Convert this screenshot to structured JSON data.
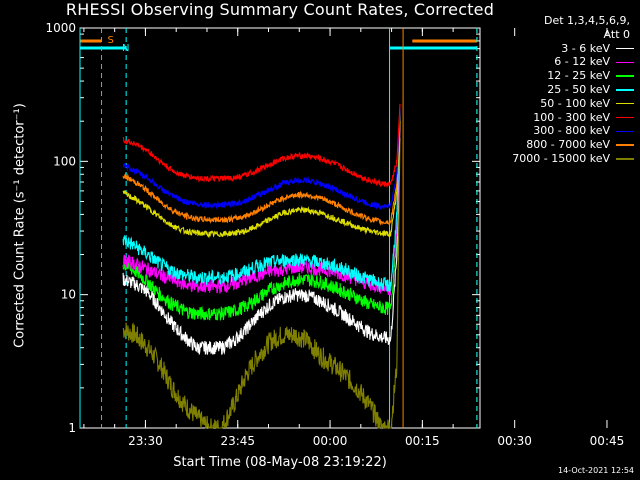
{
  "chart_data": {
    "type": "line",
    "title": "RHESSI Observing Summary Count Rates, Corrected",
    "xlabel": "Start Time (08-May-08 23:19:22)",
    "ylabel": "Corrected Count Rate (s⁻¹ detector⁻¹)",
    "yscale": "log",
    "ylim": [
      1,
      1000
    ],
    "xlim_minutes": [
      0,
      65
    ],
    "x_ticks": [
      "23:30",
      "23:45",
      "00:00",
      "00:15",
      "00:30",
      "00:45"
    ],
    "y_ticks": [
      "1",
      "10",
      "100",
      "1000"
    ],
    "legend_header": [
      "Det 1,3,4,5,6,9,",
      "Att 0"
    ],
    "series": [
      {
        "name": "3 - 6 keV",
        "color": "#ffffff",
        "x": [
          7,
          9,
          11,
          13,
          15,
          17,
          19,
          21,
          23,
          25,
          27,
          29,
          31,
          33,
          35,
          37,
          39,
          41,
          43,
          45,
          47,
          49,
          50.5,
          51.5,
          52
        ],
        "values": [
          13,
          12,
          10.5,
          8,
          6,
          4.8,
          4,
          4,
          4,
          4.5,
          5.5,
          7,
          8.5,
          9.5,
          10,
          9.8,
          9,
          8,
          7,
          6,
          5.2,
          4.8,
          4.6,
          20,
          200
        ]
      },
      {
        "name": "6 - 12 keV",
        "color": "#ff00ff",
        "x": [
          7,
          9,
          11,
          13,
          15,
          17,
          19,
          21,
          23,
          25,
          27,
          29,
          31,
          33,
          35,
          37,
          39,
          41,
          43,
          45,
          47,
          49,
          50.5,
          51.5,
          52
        ],
        "values": [
          18,
          17,
          15.5,
          14,
          13,
          12,
          11.5,
          11.5,
          11.5,
          12,
          13,
          14,
          15,
          15.5,
          16,
          16,
          15.5,
          15,
          14,
          13,
          12,
          11.5,
          11,
          30,
          220
        ]
      },
      {
        "name": "12 - 25 keV",
        "color": "#00ff00",
        "x": [
          7,
          9,
          11,
          13,
          15,
          17,
          19,
          21,
          23,
          25,
          27,
          29,
          31,
          33,
          35,
          37,
          39,
          41,
          43,
          45,
          47,
          49,
          50.5,
          51.5,
          52
        ],
        "values": [
          17,
          15,
          12.5,
          10,
          8.5,
          7.5,
          7.2,
          7.2,
          7.2,
          7.5,
          8.2,
          9.5,
          11,
          12,
          13,
          13,
          12.5,
          11.5,
          10.5,
          9.5,
          8.5,
          8,
          7.8,
          30,
          250
        ]
      },
      {
        "name": "25 - 50 keV",
        "color": "#00ffff",
        "x": [
          7,
          9,
          11,
          13,
          15,
          17,
          19,
          21,
          23,
          25,
          27,
          29,
          31,
          33,
          35,
          37,
          39,
          41,
          43,
          45,
          47,
          49,
          50.5,
          51.5,
          52
        ],
        "values": [
          26,
          23,
          20,
          17,
          15,
          14,
          13.5,
          13.5,
          13.5,
          14,
          15,
          16.5,
          17.5,
          18,
          18.5,
          18,
          17.5,
          16.5,
          15.5,
          14,
          13,
          12,
          11.5,
          40,
          230
        ]
      },
      {
        "name": "50 - 100 keV",
        "color": "#dddd00",
        "x": [
          7,
          9,
          11,
          13,
          15,
          17,
          19,
          21,
          23,
          25,
          27,
          29,
          31,
          33,
          35,
          37,
          39,
          41,
          43,
          45,
          47,
          49,
          50.5,
          51.5,
          52
        ],
        "values": [
          58,
          52,
          45,
          38,
          33,
          30,
          29,
          28.5,
          28.5,
          29,
          30,
          33,
          37,
          41,
          43,
          43,
          41,
          38,
          35,
          32,
          30,
          29,
          28.5,
          60,
          200
        ]
      },
      {
        "name": "100 - 300 keV",
        "color": "#ff0000",
        "x": [
          7,
          9,
          11,
          13,
          15,
          17,
          19,
          21,
          23,
          25,
          27,
          29,
          31,
          33,
          35,
          37,
          39,
          41,
          43,
          45,
          47,
          49,
          50.5,
          51.5,
          52
        ],
        "values": [
          145,
          135,
          120,
          100,
          85,
          78,
          75,
          74,
          74,
          75,
          79,
          86,
          96,
          105,
          110,
          110,
          105,
          98,
          88,
          79,
          72,
          68,
          67,
          100,
          270
        ]
      },
      {
        "name": "300 - 800 keV",
        "color": "#0000ff",
        "x": [
          7,
          9,
          11,
          13,
          15,
          17,
          19,
          21,
          23,
          25,
          27,
          29,
          31,
          33,
          35,
          37,
          39,
          41,
          43,
          45,
          47,
          49,
          50.5,
          51.5,
          52
        ],
        "values": [
          92,
          85,
          75,
          63,
          55,
          50,
          48,
          47,
          47,
          48,
          51,
          56,
          62,
          68,
          72,
          72,
          68,
          63,
          57,
          52,
          48,
          46,
          46,
          80,
          250
        ]
      },
      {
        "name": "800 - 7000 keV",
        "color": "#ff8000",
        "x": [
          7,
          9,
          11,
          13,
          15,
          17,
          19,
          21,
          23,
          25,
          27,
          29,
          31,
          33,
          35,
          37,
          39,
          41,
          43,
          45,
          47,
          49,
          50.5,
          51.5,
          52
        ],
        "values": [
          78,
          70,
          60,
          50,
          43,
          39,
          37,
          36.5,
          36.5,
          37,
          39,
          43,
          48,
          53,
          56,
          56,
          53,
          49,
          44,
          40,
          37,
          35,
          35,
          70,
          240
        ]
      },
      {
        "name": "7000 - 15000 keV",
        "color": "#808000",
        "x": [
          7,
          9,
          11,
          13,
          15,
          17,
          19,
          21,
          23,
          25,
          27,
          29,
          31,
          33,
          35,
          37,
          39,
          41,
          43,
          45,
          47,
          49,
          50.5,
          51.5,
          52
        ],
        "values": [
          5.5,
          5,
          4,
          3,
          2,
          1.5,
          1.2,
          1,
          1,
          1.5,
          2.5,
          3.5,
          4.5,
          5,
          5,
          4.5,
          3.5,
          3,
          2.5,
          2,
          1.5,
          1,
          1,
          3,
          150
        ]
      }
    ],
    "markers": [
      {
        "label": "S",
        "color": "#ff8000",
        "x": [
          3.5,
          52.5,
          64.5
        ]
      },
      {
        "label": "N",
        "color": "#00ffff",
        "x": [
          0,
          7.5,
          50.3,
          64.5
        ]
      }
    ],
    "bars": [
      {
        "color": "#ff8000",
        "segments": [
          [
            0,
            3.5
          ],
          [
            54,
            64.5
          ]
        ]
      },
      {
        "color": "#00ffff",
        "segments": [
          [
            0,
            7.5
          ],
          [
            50.3,
            64.5
          ]
        ]
      }
    ]
  },
  "stamp": "14-Oct-2021 12:54"
}
